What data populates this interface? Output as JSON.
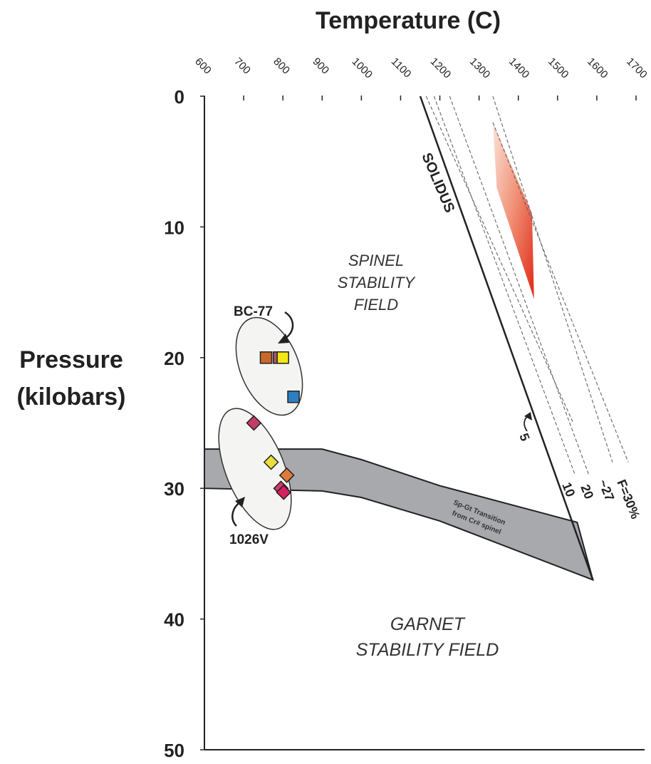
{
  "chart_data": {
    "type": "scatter",
    "title": "Temperature (C)",
    "xlabel": "Temperature (C)",
    "ylabel": [
      "Pressure",
      "(kilobars)"
    ],
    "xlim": [
      600,
      1700
    ],
    "ylim": [
      0,
      50
    ],
    "y_inverted": true,
    "x_ticks": [
      "600",
      "700",
      "800",
      "900",
      "1000",
      "1100",
      "1200",
      "1300",
      "1400",
      "1500",
      "1600",
      "1700"
    ],
    "y_ticks": [
      "0",
      "10",
      "20",
      "30",
      "40",
      "50"
    ],
    "grid": false,
    "lines": [
      {
        "name": "SOLIDUS",
        "style": "solid",
        "points": [
          [
            1150,
            0
          ],
          [
            1590,
            37
          ]
        ]
      },
      {
        "name": "5",
        "style": "dashed",
        "points": [
          [
            1165,
            0
          ],
          [
            1540,
            25
          ]
        ]
      },
      {
        "name": "10",
        "style": "dashed",
        "points": [
          [
            1185,
            0
          ],
          [
            1545,
            29
          ]
        ]
      },
      {
        "name": "20",
        "style": "dashed",
        "points": [
          [
            1225,
            0
          ],
          [
            1580,
            29
          ]
        ]
      },
      {
        "name": "~27",
        "style": "dashed",
        "points": [
          [
            1335,
            0
          ],
          [
            1640,
            28
          ]
        ]
      },
      {
        "name": "F=30%",
        "style": "dashed",
        "points": [
          [
            1335,
            2
          ],
          [
            1680,
            28
          ]
        ]
      }
    ],
    "regions": [
      {
        "name": "Sp-Gt Transition from Cr# spinel",
        "upper": [
          [
            600,
            27
          ],
          [
            900,
            27
          ],
          [
            1000,
            27.8
          ],
          [
            1200,
            29.8
          ],
          [
            1550,
            32.6
          ]
        ],
        "lower": [
          [
            600,
            30
          ],
          [
            900,
            30.2
          ],
          [
            1000,
            30.7
          ],
          [
            1200,
            32.5
          ],
          [
            1590,
            37
          ]
        ]
      },
      {
        "name": "melt region",
        "points": [
          [
            1335,
            2
          ],
          [
            1345,
            7
          ],
          [
            1440,
            15.5
          ],
          [
            1435,
            9
          ]
        ]
      }
    ],
    "samples": [
      {
        "group": "BC-77",
        "marker": "square",
        "color": "#c8692a",
        "x": 757,
        "y": 20
      },
      {
        "group": "BC-77",
        "marker": "square",
        "color": "#a8566a",
        "x": 790,
        "y": 20
      },
      {
        "group": "BC-77",
        "marker": "square",
        "color": "#f4e713",
        "x": 800,
        "y": 20
      },
      {
        "group": "BC-77",
        "marker": "square",
        "color": "#2e7fc1",
        "x": 827,
        "y": 23
      },
      {
        "group": "1026V",
        "marker": "diamond",
        "color": "#c23c6a",
        "x": 726,
        "y": 25
      },
      {
        "group": "1026V",
        "marker": "diamond",
        "color": "#e8df3a",
        "x": 770,
        "y": 28
      },
      {
        "group": "1026V",
        "marker": "diamond",
        "color": "#e07a3a",
        "x": 810,
        "y": 29
      },
      {
        "group": "1026V",
        "marker": "diamond",
        "color": "#d03a6a",
        "x": 795,
        "y": 30
      },
      {
        "group": "1026V",
        "marker": "diamond",
        "color": "#d81f5e",
        "x": 802,
        "y": 30.3
      }
    ],
    "annotations": {
      "spinel": [
        "SPINEL",
        "STABILITY",
        "FIELD"
      ],
      "garnet": [
        "GARNET",
        "STABILITY FIELD"
      ],
      "solidus": "SOLIDUS",
      "transition": [
        "Sp-Gt Transition",
        "from Cr# spinel"
      ],
      "group_bc77": "BC-77",
      "group_1026v": "1026V",
      "f5": "5",
      "f10": "10",
      "f20": "20",
      "f27": "~27",
      "f30": "F=30%"
    }
  }
}
